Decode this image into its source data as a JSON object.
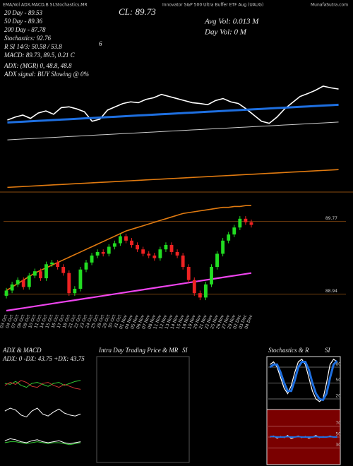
{
  "header": {
    "title": "Innovator S&P 500 Ultra Buffer ETF Aug (UAUG)",
    "site": "MunafaSutra.com",
    "indicators": "EMA/Vol ADX,MACD,B SI,Stochastics,MR"
  },
  "chart_data": [
    {
      "type": "line",
      "annotations": [
        "CL: 89.73",
        "Avg Vol: 0.013 M",
        "Day Vol: 0 M",
        "20 Day - 89.53",
        "50 Day - 89.36",
        "200 Day - 87.78",
        "Stochastics: 92.76",
        "R SI 14/3: 50.58 / 53.8",
        "6",
        "MACD: 89.73, 89.5, 0.21 C",
        "ADX: (MGR) 0, 48.8, 48.8",
        "ADX signal: BUY Slowing @ 0%"
      ],
      "ylim": [
        87.1,
        91.8
      ],
      "series": [
        {
          "color": "#ffffff",
          "values": [
            88.98,
            89.05,
            89.1,
            89.02,
            89.15,
            89.2,
            89.12,
            89.28,
            89.3,
            89.25,
            89.18,
            88.95,
            89.0,
            89.22,
            89.3,
            89.38,
            89.42,
            89.4,
            89.48,
            89.52,
            89.6,
            89.55,
            89.5,
            89.45,
            89.4,
            89.38,
            89.35,
            89.45,
            89.5,
            89.42,
            89.38,
            89.25,
            89.1,
            88.95,
            88.9,
            89.05,
            89.25,
            89.4,
            89.55,
            89.62,
            89.7,
            89.8,
            89.76,
            89.73
          ]
        },
        {
          "color": "#1e6fe0",
          "values": [
            88.92,
            88.93,
            88.94,
            88.95,
            88.96,
            88.97,
            88.98,
            88.99,
            89.0,
            89.01,
            89.02,
            89.03,
            89.04,
            89.05,
            89.06,
            89.07,
            89.08,
            89.09,
            89.1,
            89.11,
            89.12,
            89.13,
            89.14,
            89.15,
            89.16,
            89.17,
            89.18,
            89.19,
            89.2,
            89.21,
            89.22,
            89.23,
            89.24,
            89.25,
            89.26,
            89.27,
            89.28,
            89.29,
            89.3,
            89.31,
            89.32,
            89.33,
            89.34,
            89.35
          ]
        },
        {
          "color": "#cccccc",
          "values": [
            88.5,
            88.51,
            88.52,
            88.53,
            88.54,
            88.55,
            88.56,
            88.57,
            88.58,
            88.59,
            88.6,
            88.61,
            88.62,
            88.63,
            88.64,
            88.65,
            88.66,
            88.67,
            88.68,
            88.69,
            88.7,
            88.71,
            88.72,
            88.73,
            88.74,
            88.75,
            88.76,
            88.77,
            88.78,
            88.79,
            88.8,
            88.81,
            88.82,
            88.83,
            88.84,
            88.85,
            88.86,
            88.87,
            88.88,
            88.89,
            88.9,
            88.91,
            88.92,
            88.93
          ]
        },
        {
          "color": "#e07a10",
          "values": [
            87.35,
            87.36,
            87.37,
            87.38,
            87.39,
            87.4,
            87.41,
            87.42,
            87.43,
            87.44,
            87.45,
            87.46,
            87.47,
            87.48,
            87.49,
            87.5,
            87.51,
            87.52,
            87.53,
            87.54,
            87.55,
            87.56,
            87.57,
            87.58,
            87.59,
            87.6,
            87.61,
            87.62,
            87.63,
            87.64,
            87.65,
            87.66,
            87.67,
            87.68,
            87.69,
            87.7,
            87.71,
            87.72,
            87.73,
            87.74,
            87.75,
            87.76,
            87.77,
            87.78
          ]
        }
      ]
    },
    {
      "type": "candlestick",
      "categories": [
        "03 Oct",
        "04 Oct",
        "07 Oct",
        "08 Oct",
        "09 Oct",
        "10 Oct",
        "11 Oct",
        "14 Oct",
        "15 Oct",
        "16 Oct",
        "17 Oct",
        "18 Oct",
        "21 Oct",
        "22 Oct",
        "23 Oct",
        "24 Oct",
        "25 Oct",
        "28 Oct",
        "29 Oct",
        "30 Oct",
        "31 Oct",
        "01 Nov",
        "04 Nov",
        "05 Nov",
        "06 Nov",
        "07 Nov",
        "08 Nov",
        "11 Nov",
        "12 Nov",
        "13 Nov",
        "14 Nov",
        "15 Nov",
        "18 Nov",
        "19 Nov",
        "20 Nov",
        "21 Nov",
        "22 Nov",
        "25 Nov",
        "26 Nov",
        "27 Nov",
        "29 Nov",
        "02 Dec",
        "03 Dec",
        "04 Dec"
      ],
      "open": [
        88.92,
        88.98,
        89.05,
        89.1,
        89.02,
        89.15,
        89.2,
        89.12,
        89.28,
        89.3,
        89.25,
        89.18,
        88.95,
        89.0,
        89.22,
        89.3,
        89.38,
        89.42,
        89.4,
        89.48,
        89.52,
        89.6,
        89.55,
        89.5,
        89.45,
        89.4,
        89.38,
        89.35,
        89.45,
        89.5,
        89.42,
        89.38,
        89.25,
        89.1,
        88.95,
        88.9,
        89.05,
        89.25,
        89.4,
        89.55,
        89.62,
        89.7,
        89.8,
        89.76
      ],
      "high": [
        89.01,
        89.08,
        89.13,
        89.13,
        89.18,
        89.23,
        89.23,
        89.31,
        89.33,
        89.33,
        89.28,
        89.21,
        89.03,
        89.25,
        89.33,
        89.41,
        89.45,
        89.45,
        89.51,
        89.55,
        89.63,
        89.63,
        89.58,
        89.53,
        89.48,
        89.43,
        89.41,
        89.48,
        89.53,
        89.53,
        89.45,
        89.41,
        89.28,
        89.13,
        88.98,
        89.08,
        89.28,
        89.43,
        89.58,
        89.65,
        89.73,
        89.83,
        89.83,
        89.79
      ],
      "low": [
        88.89,
        88.95,
        89.02,
        88.99,
        88.99,
        89.12,
        89.09,
        89.09,
        89.25,
        89.22,
        89.15,
        88.92,
        88.92,
        88.97,
        89.19,
        89.27,
        89.35,
        89.37,
        89.37,
        89.45,
        89.49,
        89.52,
        89.47,
        89.42,
        89.37,
        89.35,
        89.32,
        89.32,
        89.42,
        89.39,
        89.35,
        89.22,
        89.07,
        88.92,
        88.87,
        88.87,
        89.02,
        89.22,
        89.37,
        89.52,
        89.59,
        89.67,
        89.73,
        89.7
      ],
      "close": [
        88.98,
        89.05,
        89.1,
        89.02,
        89.15,
        89.2,
        89.12,
        89.28,
        89.3,
        89.25,
        89.18,
        88.95,
        89.0,
        89.22,
        89.3,
        89.38,
        89.42,
        89.4,
        89.48,
        89.52,
        89.6,
        89.55,
        89.5,
        89.45,
        89.4,
        89.38,
        89.35,
        89.45,
        89.5,
        89.42,
        89.38,
        89.25,
        89.1,
        88.95,
        88.9,
        89.05,
        89.25,
        89.4,
        89.55,
        89.62,
        89.7,
        89.8,
        89.76,
        89.73
      ],
      "up_color": "#22dd22",
      "down_color": "#ee2222",
      "series": [
        {
          "color": "#e07a10",
          "values": [
            88.98,
            89.02,
            89.06,
            89.1,
            89.14,
            89.18,
            89.21,
            89.24,
            89.27,
            89.3,
            89.33,
            89.36,
            89.39,
            89.42,
            89.45,
            89.48,
            89.51,
            89.54,
            89.57,
            89.6,
            89.63,
            89.66,
            89.68,
            89.7,
            89.72,
            89.74,
            89.76,
            89.78,
            89.8,
            89.82,
            89.84,
            89.86,
            89.87,
            89.88,
            89.89,
            89.9,
            89.91,
            89.92,
            89.93,
            89.93,
            89.94,
            89.94,
            89.95,
            89.95
          ]
        },
        {
          "color": "#ee44ee",
          "values": [
            88.75,
            88.76,
            88.77,
            88.78,
            88.79,
            88.8,
            88.81,
            88.82,
            88.83,
            88.84,
            88.85,
            88.86,
            88.87,
            88.88,
            88.89,
            88.9,
            88.91,
            88.92,
            88.93,
            88.94,
            88.95,
            88.96,
            88.97,
            88.98,
            88.99,
            89.0,
            89.01,
            89.02,
            89.03,
            89.04,
            89.05,
            89.06,
            89.07,
            89.08,
            89.09,
            89.1,
            89.11,
            89.12,
            89.13,
            89.14,
            89.15,
            89.16,
            89.17,
            89.18
          ]
        }
      ],
      "ylim": [
        88.75,
        90.0
      ],
      "yticks": [
        89.77,
        88.94
      ],
      "grid": true,
      "grid_color": "#8a4b10"
    },
    {
      "type": "line",
      "title": "ADX & MACD",
      "annotations": [
        "ADX: 0 -DX: 43.75 +DX: 43.75"
      ],
      "ylim": [
        0,
        100
      ],
      "series": [
        {
          "color": "#33cc33",
          "values": [
            80,
            79,
            82,
            78,
            76,
            80,
            81,
            79,
            77,
            80,
            81,
            78,
            80,
            82,
            83
          ]
        },
        {
          "color": "#cc3333",
          "values": [
            78,
            81,
            79,
            83,
            81,
            77,
            76,
            80,
            81,
            78,
            76,
            79,
            77,
            75,
            74
          ]
        },
        {
          "color": "#ffffff",
          "values": [
            52,
            55,
            53,
            48,
            46,
            52,
            55,
            49,
            47,
            51,
            54,
            50,
            48,
            47,
            49
          ]
        },
        {
          "color": "#ffffff",
          "values": [
            22,
            24,
            23,
            21,
            20,
            22,
            23,
            21,
            20,
            21,
            22,
            20,
            19,
            20,
            21
          ]
        },
        {
          "color": "#33cc33",
          "values": [
            20,
            21,
            21,
            20,
            19,
            20,
            21,
            20,
            19,
            20,
            20,
            19,
            18,
            19,
            20
          ]
        }
      ]
    },
    {
      "type": "intraday",
      "title": "Intra Day Trading Price & MR",
      "annotations": [
        "SI"
      ]
    },
    {
      "type": "line",
      "title": "Stochastics & R",
      "annotations": [
        "SI"
      ],
      "ylim": [
        0,
        100
      ],
      "yticks": [
        20,
        50,
        80
      ],
      "grid": true,
      "grid_color": "#888888",
      "series": [
        {
          "color": "#ffffff",
          "values": [
            85,
            90,
            80,
            60,
            40,
            30,
            45,
            70,
            90,
            95,
            85,
            60,
            35,
            20,
            15,
            20,
            50,
            85,
            95,
            90
          ]
        },
        {
          "color": "#1e6fe0",
          "values": [
            80,
            85,
            85,
            70,
            50,
            35,
            35,
            55,
            80,
            90,
            90,
            75,
            50,
            30,
            20,
            18,
            30,
            60,
            85,
            92
          ]
        }
      ]
    },
    {
      "type": "line",
      "ylim": [
        0,
        100
      ],
      "yticks": [
        30,
        50,
        70
      ],
      "grid": true,
      "grid_color": "#bb6666",
      "series": [
        {
          "color": "#ffffff",
          "values": [
            50,
            52,
            48,
            51,
            49,
            53,
            47,
            50,
            52,
            49,
            51,
            48,
            50,
            53,
            49,
            51,
            50,
            52,
            50,
            51
          ]
        },
        {
          "color": "#1e6fe0",
          "values": [
            51,
            51,
            50,
            50,
            50,
            51,
            50,
            50,
            51,
            50,
            50,
            50,
            50,
            51,
            50,
            50,
            50,
            51,
            50,
            50
          ]
        }
      ]
    }
  ]
}
